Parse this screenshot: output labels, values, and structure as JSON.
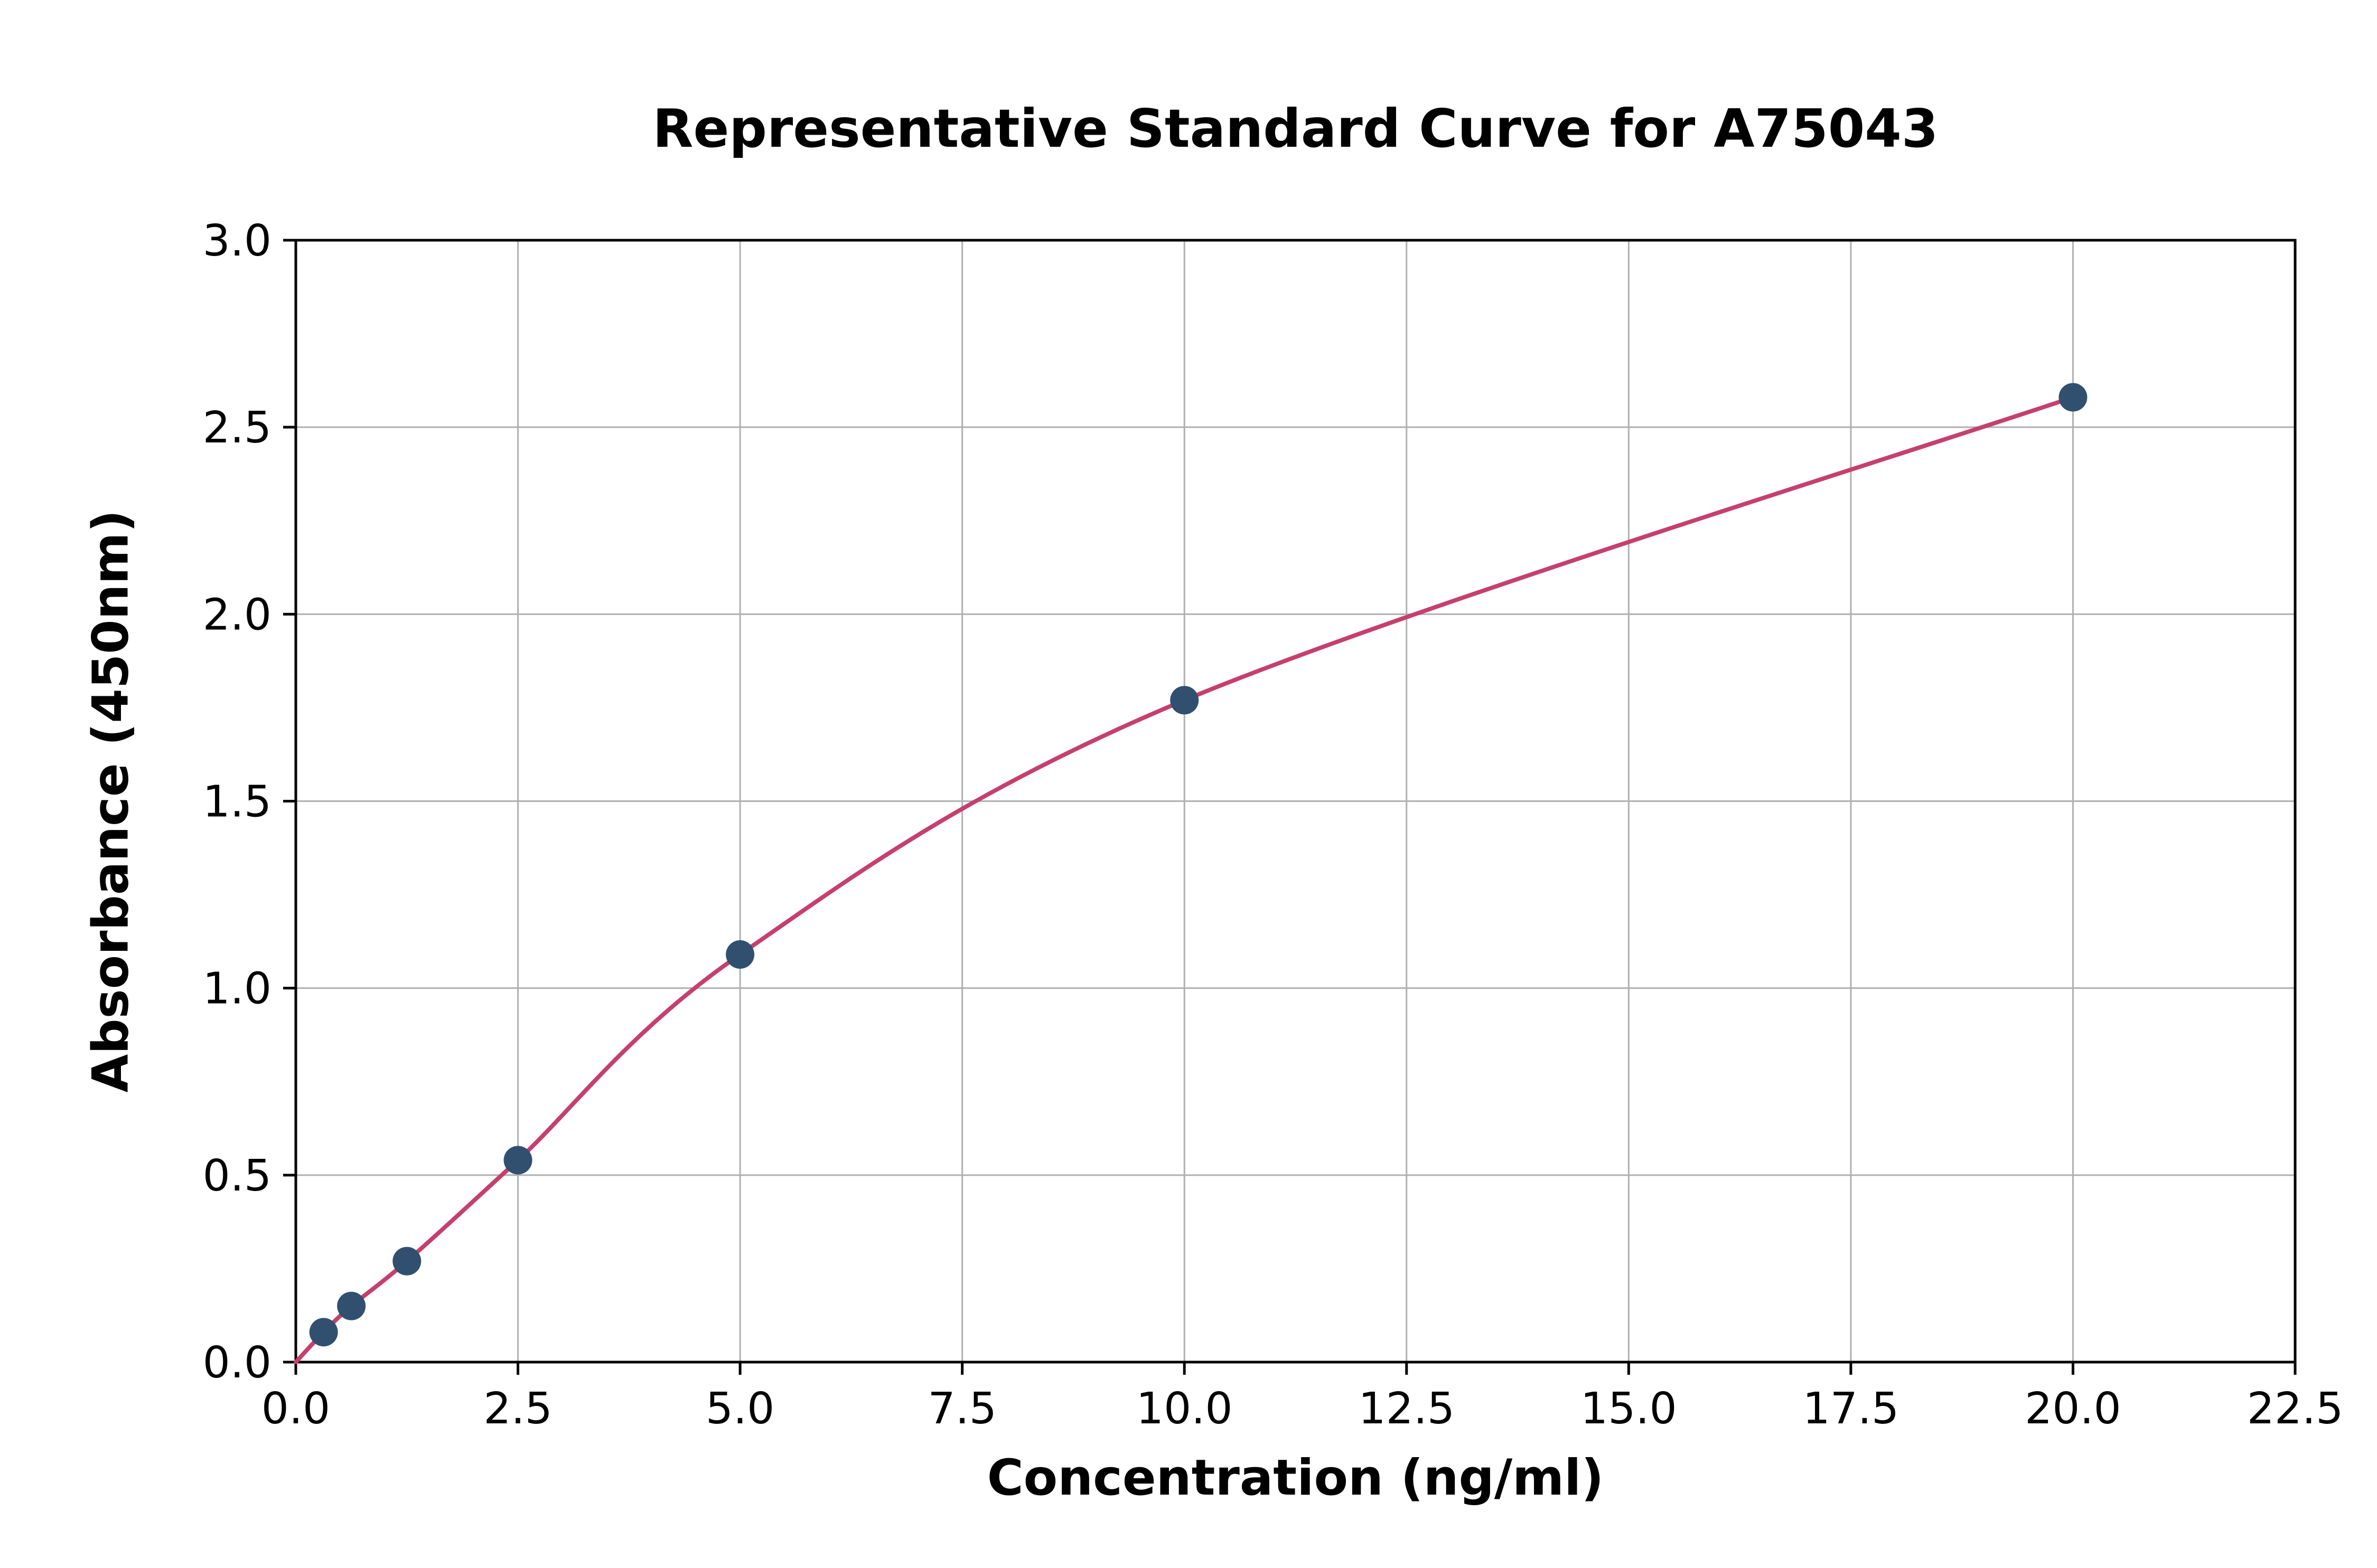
{
  "chart_data": {
    "type": "scatter",
    "title": "Representative Standard Curve for A75043",
    "xlabel": "Concentration (ng/ml)",
    "ylabel": "Absorbance (450nm)",
    "xlim": [
      0,
      22.5
    ],
    "ylim": [
      0,
      3.0
    ],
    "grid": true,
    "legend": "none",
    "xticks": {
      "values": [
        0,
        2.5,
        5,
        7.5,
        10,
        12.5,
        15,
        17.5,
        20,
        22.5
      ],
      "labels": [
        "0.0",
        "2.5",
        "5.0",
        "7.5",
        "10.0",
        "12.5",
        "15.0",
        "17.5",
        "20.0",
        "22.5"
      ]
    },
    "yticks": {
      "values": [
        0,
        0.5,
        1,
        1.5,
        2,
        2.5,
        3
      ],
      "labels": [
        "0.0",
        "0.5",
        "1.0",
        "1.5",
        "2.0",
        "2.5",
        "3.0"
      ]
    },
    "points": {
      "x": [
        0.313,
        0.625,
        1.25,
        2.5,
        5,
        10,
        20
      ],
      "y": [
        0.08,
        0.15,
        0.27,
        0.54,
        1.09,
        1.77,
        2.58
      ]
    },
    "fit_curve": {
      "x": [
        0,
        0.313,
        0.625,
        1.25,
        2.5,
        5,
        10,
        20
      ],
      "y": [
        0,
        0.08,
        0.15,
        0.27,
        0.54,
        1.09,
        1.77,
        2.58
      ]
    },
    "colors": {
      "curve": "#C5406E",
      "points": "#31506F",
      "grid": "#B0B0B0",
      "axis": "#000000",
      "background": "#FFFFFF",
      "text": "#000000"
    }
  }
}
